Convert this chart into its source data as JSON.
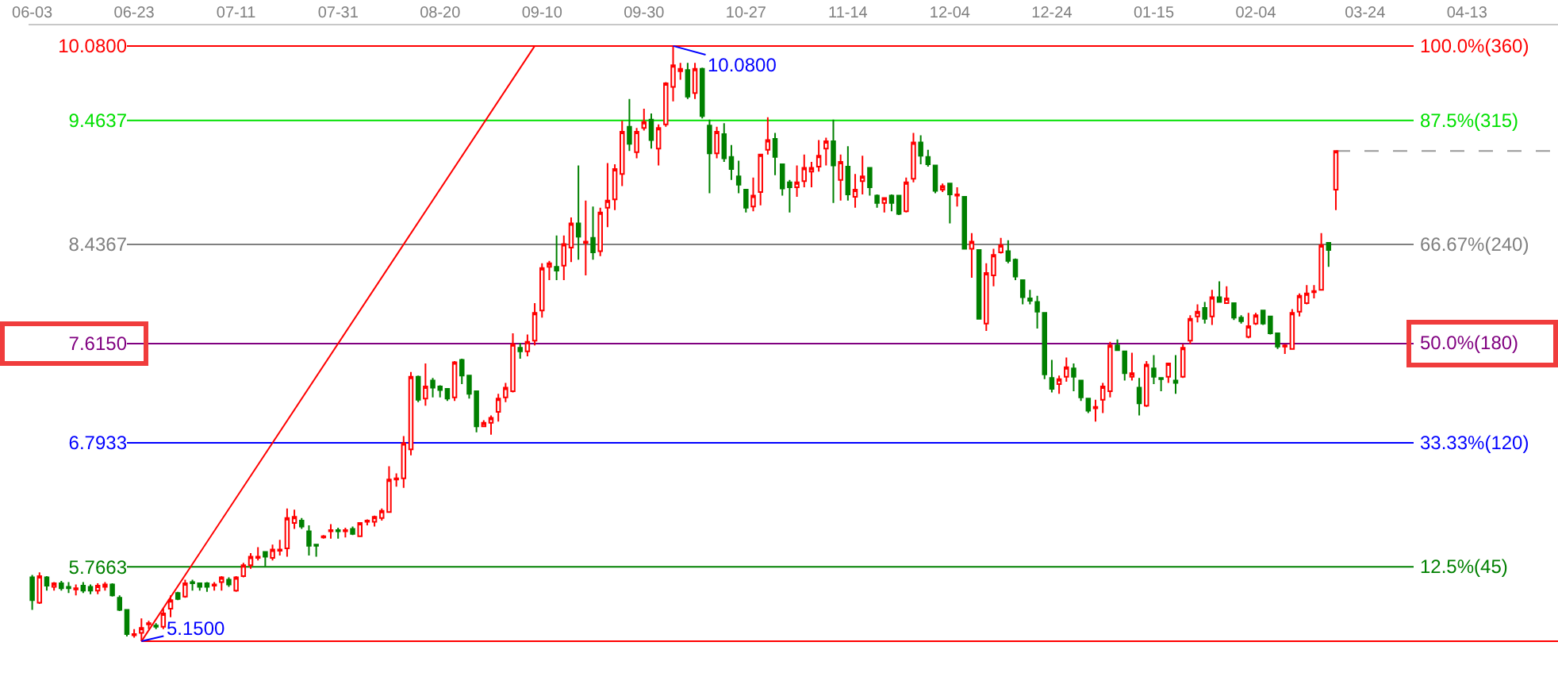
{
  "chart_data": {
    "type": "candlestick",
    "categories": [
      "06-03",
      null,
      null,
      null,
      null,
      null,
      null,
      null,
      null,
      null,
      null,
      null,
      null,
      null,
      "06-23",
      null,
      null,
      null,
      null,
      null,
      null,
      null,
      null,
      null,
      null,
      null,
      null,
      null,
      "07-11",
      null,
      null,
      null,
      null,
      null,
      null,
      null,
      null,
      null,
      null,
      null,
      null,
      null,
      "07-31",
      null,
      null,
      null,
      null,
      null,
      null,
      null,
      null,
      null,
      null,
      null,
      null,
      null,
      "08-20",
      null,
      null,
      null,
      null,
      null,
      null,
      null,
      null,
      null,
      null,
      null,
      null,
      null,
      "09-10",
      null,
      null,
      null,
      null,
      null,
      null,
      null,
      null,
      null,
      null,
      null,
      null,
      null,
      "09-30",
      null,
      null,
      null,
      null,
      null,
      null,
      null,
      null,
      null,
      null,
      null,
      null,
      null,
      "10-27",
      null,
      null,
      null,
      null,
      null,
      null,
      null,
      null,
      null,
      null,
      null,
      null,
      null,
      "11-14",
      null,
      null,
      null,
      null,
      null,
      null,
      null,
      null,
      null,
      null,
      null,
      null,
      null,
      "12-04",
      null,
      null,
      null,
      null,
      null,
      null,
      null,
      null,
      null,
      null,
      null,
      null,
      null,
      "12-24",
      null,
      null,
      null,
      null,
      null,
      null,
      null,
      null,
      null,
      null,
      null,
      null,
      null,
      "01-15",
      null,
      null,
      null,
      null,
      null,
      null,
      null,
      null,
      null,
      null,
      null,
      null,
      null,
      "02-04",
      null,
      null,
      null,
      null,
      null,
      null,
      null,
      null,
      null,
      null,
      null,
      null,
      null,
      null,
      "03-24",
      null,
      null,
      null,
      null,
      null,
      null,
      null,
      null,
      null,
      null,
      null,
      null,
      null,
      "04-13",
      null,
      null,
      null,
      null,
      null,
      null,
      null,
      null,
      null,
      null,
      null,
      null
    ],
    "series": [
      {
        "type": "line",
        "color": "#ff0000",
        "values": [
          null,
          null,
          null,
          null,
          null,
          null,
          null,
          null,
          null,
          null,
          null,
          null,
          null,
          null,
          null,
          5.15,
          null,
          null,
          null,
          null,
          null,
          null,
          null,
          null,
          null,
          null,
          null,
          null,
          null,
          null,
          null,
          null,
          null,
          null,
          null,
          null,
          null,
          null,
          null,
          null,
          null,
          null,
          null,
          null,
          null,
          null,
          null,
          null,
          null,
          null,
          null,
          null,
          null,
          null,
          null,
          null,
          null,
          null,
          null,
          null,
          null,
          null,
          null,
          null,
          null,
          null,
          null,
          null,
          null,
          10.08,
          null,
          null,
          null,
          null,
          null,
          null,
          null,
          null,
          null,
          null,
          null,
          null,
          null,
          null,
          null,
          null,
          null,
          null,
          null,
          null,
          null,
          null,
          null,
          null,
          null,
          null,
          null,
          null,
          null,
          null,
          null,
          null,
          null,
          null,
          null,
          null,
          null,
          null,
          null,
          null,
          null,
          null,
          null,
          null,
          null,
          null,
          null,
          null,
          null,
          null,
          null,
          null,
          null,
          null,
          null,
          null,
          null,
          null,
          null,
          null,
          null,
          null,
          null,
          null,
          null,
          null,
          null,
          null,
          null,
          null,
          null,
          null,
          null,
          null,
          null,
          null,
          null,
          null,
          null,
          null,
          null,
          null,
          null,
          null,
          null,
          null,
          null,
          null,
          null,
          null,
          null,
          null,
          null,
          null,
          null,
          null,
          null,
          null,
          null,
          null,
          null,
          null,
          null,
          null,
          null,
          null,
          null,
          null,
          null,
          null,
          null,
          null,
          null,
          null,
          null,
          null,
          null,
          null,
          null,
          null,
          null,
          null,
          null,
          null,
          null,
          null,
          null,
          null,
          null,
          null,
          null,
          null,
          null,
          null,
          null,
          null,
          null,
          null,
          null,
          null
        ]
      },
      {
        "ohlc": [
          [
            5.68,
            5.7,
            5.41,
            5.49
          ],
          [
            5.47,
            5.72,
            5.46,
            5.69
          ],
          [
            5.68,
            5.69,
            5.57,
            5.61
          ],
          [
            5.6,
            5.64,
            5.57,
            5.63
          ],
          [
            5.63,
            5.65,
            5.57,
            5.59
          ],
          [
            5.6,
            5.64,
            5.55,
            5.59
          ],
          [
            5.58,
            5.62,
            5.53,
            5.59
          ],
          [
            5.61,
            5.64,
            5.55,
            5.57
          ],
          [
            5.6,
            5.62,
            5.54,
            5.57
          ],
          [
            5.57,
            5.63,
            5.54,
            5.61
          ],
          [
            5.6,
            5.64,
            5.57,
            5.62
          ],
          [
            5.62,
            5.63,
            5.52,
            5.53
          ],
          [
            5.51,
            5.53,
            5.4,
            5.41
          ],
          [
            5.41,
            5.41,
            5.19,
            5.21
          ],
          [
            5.2,
            5.25,
            5.18,
            5.21
          ],
          [
            5.22,
            5.34,
            5.15,
            5.26
          ],
          [
            5.29,
            5.32,
            5.25,
            5.3
          ],
          [
            5.28,
            5.3,
            5.25,
            5.27
          ],
          [
            5.27,
            5.42,
            5.25,
            5.38
          ],
          [
            5.42,
            5.53,
            5.35,
            5.49
          ],
          [
            5.55,
            5.56,
            5.49,
            5.5
          ],
          [
            5.52,
            5.66,
            5.51,
            5.63
          ],
          [
            5.64,
            5.66,
            5.57,
            5.63
          ],
          [
            5.63,
            5.63,
            5.57,
            5.6
          ],
          [
            5.63,
            5.64,
            5.56,
            5.6
          ],
          [
            5.61,
            5.64,
            5.57,
            5.62
          ],
          [
            5.64,
            5.69,
            5.57,
            5.68
          ],
          [
            5.66,
            5.68,
            5.6,
            5.62
          ],
          [
            5.57,
            5.69,
            5.56,
            5.68
          ],
          [
            5.69,
            5.8,
            5.68,
            5.78
          ],
          [
            5.78,
            5.88,
            5.75,
            5.85
          ],
          [
            5.84,
            5.93,
            5.82,
            5.85
          ],
          [
            5.89,
            5.89,
            5.77,
            5.85
          ],
          [
            5.84,
            5.95,
            5.82,
            5.91
          ],
          [
            5.9,
            5.99,
            5.86,
            5.91
          ],
          [
            5.92,
            6.25,
            5.85,
            6.17
          ],
          [
            6.13,
            6.24,
            6.08,
            6.18
          ],
          [
            6.15,
            6.17,
            6.08,
            6.1
          ],
          [
            6.06,
            6.11,
            5.86,
            5.94
          ],
          [
            5.95,
            5.95,
            5.85,
            5.94
          ],
          [
            6.01,
            6.03,
            6.0,
            6.02
          ],
          [
            6.06,
            6.12,
            6.0,
            6.07
          ],
          [
            6.07,
            6.09,
            6.0,
            6.06
          ],
          [
            6.06,
            6.09,
            6.01,
            6.07
          ],
          [
            6.08,
            6.1,
            6.03,
            6.04
          ],
          [
            6.02,
            6.13,
            6.02,
            6.13
          ],
          [
            6.14,
            6.16,
            6.11,
            6.15
          ],
          [
            6.14,
            6.19,
            6.1,
            6.18
          ],
          [
            6.17,
            6.25,
            6.15,
            6.23
          ],
          [
            6.22,
            6.6,
            6.22,
            6.49
          ],
          [
            6.49,
            6.54,
            6.43,
            6.5
          ],
          [
            6.5,
            6.85,
            6.42,
            6.79
          ],
          [
            6.74,
            7.38,
            6.69,
            7.34
          ],
          [
            7.34,
            7.35,
            7.13,
            7.15
          ],
          [
            7.16,
            7.45,
            7.1,
            7.26
          ],
          [
            7.31,
            7.33,
            7.17,
            7.25
          ],
          [
            7.26,
            7.27,
            7.17,
            7.23
          ],
          [
            7.24,
            7.24,
            7.14,
            7.16
          ],
          [
            7.17,
            7.47,
            7.14,
            7.46
          ],
          [
            7.48,
            7.49,
            7.28,
            7.35
          ],
          [
            7.35,
            7.35,
            7.16,
            7.2
          ],
          [
            7.22,
            7.22,
            6.88,
            6.93
          ],
          [
            6.93,
            6.98,
            6.93,
            6.96
          ],
          [
            6.96,
            7.02,
            6.86,
            7.0
          ],
          [
            7.05,
            7.2,
            6.97,
            7.16
          ],
          [
            7.17,
            7.29,
            7.13,
            7.25
          ],
          [
            7.22,
            7.7,
            7.21,
            7.61
          ],
          [
            7.58,
            7.62,
            7.49,
            7.55
          ],
          [
            7.55,
            7.69,
            7.51,
            7.63
          ],
          [
            7.64,
            7.95,
            7.6,
            7.87
          ],
          [
            7.89,
            8.28,
            7.83,
            8.24
          ],
          [
            8.25,
            8.3,
            8.14,
            8.28
          ],
          [
            8.25,
            8.51,
            8.14,
            8.22
          ],
          [
            8.26,
            8.51,
            8.14,
            8.44
          ],
          [
            8.41,
            8.66,
            8.29,
            8.61
          ],
          [
            8.61,
            9.09,
            8.31,
            8.5
          ],
          [
            8.45,
            8.8,
            8.18,
            8.46
          ],
          [
            8.49,
            8.75,
            8.31,
            8.37
          ],
          [
            8.38,
            8.74,
            8.34,
            8.7
          ],
          [
            8.74,
            9.11,
            8.58,
            8.8
          ],
          [
            8.81,
            9.1,
            8.72,
            9.06
          ],
          [
            9.02,
            9.46,
            8.92,
            9.37
          ],
          [
            9.41,
            9.64,
            9.21,
            9.27
          ],
          [
            9.2,
            9.4,
            9.15,
            9.37
          ],
          [
            9.4,
            9.56,
            9.38,
            9.45
          ],
          [
            9.47,
            9.52,
            9.23,
            9.3
          ],
          [
            9.23,
            9.43,
            9.09,
            9.4
          ],
          [
            9.43,
            9.78,
            9.41,
            9.77
          ],
          [
            9.74,
            10.08,
            9.62,
            9.92
          ],
          [
            9.87,
            9.94,
            9.8,
            9.89
          ],
          [
            9.88,
            9.94,
            9.64,
            9.66
          ],
          [
            9.69,
            9.94,
            9.64,
            9.89
          ],
          [
            9.89,
            9.9,
            9.48,
            9.5
          ],
          [
            9.42,
            9.47,
            8.86,
            9.19
          ],
          [
            9.19,
            9.41,
            9.15,
            9.37
          ],
          [
            9.35,
            9.44,
            9.12,
            9.15
          ],
          [
            9.16,
            9.26,
            8.97,
            9.06
          ],
          [
            9.0,
            9.13,
            8.86,
            8.93
          ],
          [
            8.89,
            8.89,
            8.7,
            8.74
          ],
          [
            8.75,
            8.99,
            8.71,
            8.84
          ],
          [
            8.87,
            9.18,
            8.76,
            9.18
          ],
          [
            9.22,
            9.49,
            9.18,
            9.3
          ],
          [
            9.31,
            9.36,
            9.01,
            9.16
          ],
          [
            9.1,
            9.1,
            8.84,
            8.9
          ],
          [
            8.95,
            8.97,
            8.7,
            8.91
          ],
          [
            8.91,
            9.09,
            8.83,
            8.95
          ],
          [
            8.96,
            9.18,
            8.91,
            9.07
          ],
          [
            9.04,
            9.12,
            8.91,
            9.07
          ],
          [
            9.08,
            9.3,
            9.04,
            9.17
          ],
          [
            9.23,
            9.32,
            9.09,
            9.29
          ],
          [
            9.29,
            9.47,
            8.78,
            9.09
          ],
          [
            8.97,
            9.18,
            8.8,
            9.12
          ],
          [
            9.08,
            9.25,
            8.8,
            8.85
          ],
          [
            8.83,
            9.02,
            8.74,
            8.89
          ],
          [
            8.96,
            9.17,
            8.85,
            9.0
          ],
          [
            9.07,
            9.07,
            8.84,
            8.91
          ],
          [
            8.84,
            8.85,
            8.74,
            8.78
          ],
          [
            8.78,
            8.82,
            8.7,
            8.82
          ],
          [
            8.84,
            8.85,
            8.71,
            8.78
          ],
          [
            8.84,
            8.84,
            8.68,
            8.69
          ],
          [
            8.71,
            8.99,
            8.7,
            8.95
          ],
          [
            8.98,
            9.36,
            8.95,
            9.28
          ],
          [
            9.28,
            9.34,
            9.1,
            9.17
          ],
          [
            9.16,
            9.22,
            9.08,
            9.1
          ],
          [
            9.09,
            9.09,
            8.86,
            8.88
          ],
          [
            8.89,
            8.94,
            8.87,
            8.92
          ],
          [
            8.94,
            8.94,
            8.61,
            8.85
          ],
          [
            8.84,
            8.91,
            8.75,
            8.85
          ],
          [
            8.83,
            8.83,
            8.4,
            8.4
          ],
          [
            8.4,
            8.53,
            8.16,
            8.46
          ],
          [
            8.39,
            8.39,
            7.82,
            7.82
          ],
          [
            7.78,
            8.28,
            7.72,
            8.2
          ],
          [
            8.18,
            8.4,
            8.09,
            8.35
          ],
          [
            8.37,
            8.49,
            8.36,
            8.43
          ],
          [
            8.38,
            8.47,
            8.28,
            8.3
          ],
          [
            8.31,
            8.32,
            8.14,
            8.17
          ],
          [
            8.14,
            8.14,
            7.94,
            8.0
          ],
          [
            7.99,
            8.06,
            7.94,
            7.97
          ],
          [
            7.96,
            8.01,
            7.74,
            7.88
          ],
          [
            7.87,
            7.87,
            7.32,
            7.36
          ],
          [
            7.33,
            7.48,
            7.21,
            7.24
          ],
          [
            7.28,
            7.35,
            7.2,
            7.32
          ],
          [
            7.34,
            7.5,
            7.3,
            7.42
          ],
          [
            7.41,
            7.45,
            7.22,
            7.34
          ],
          [
            7.31,
            7.31,
            7.14,
            7.17
          ],
          [
            7.16,
            7.16,
            7.04,
            7.06
          ],
          [
            7.08,
            7.15,
            6.97,
            7.09
          ],
          [
            7.15,
            7.29,
            7.04,
            7.26
          ],
          [
            7.22,
            7.63,
            7.17,
            7.6
          ],
          [
            7.6,
            7.65,
            7.56,
            7.56
          ],
          [
            7.55,
            7.55,
            7.31,
            7.37
          ],
          [
            7.34,
            7.54,
            7.31,
            7.37
          ],
          [
            7.25,
            7.33,
            7.02,
            7.12
          ],
          [
            7.1,
            7.47,
            7.09,
            7.44
          ],
          [
            7.41,
            7.52,
            7.28,
            7.34
          ],
          [
            7.33,
            7.33,
            7.22,
            7.32
          ],
          [
            7.34,
            7.45,
            7.29,
            7.45
          ],
          [
            7.31,
            7.52,
            7.2,
            7.29
          ],
          [
            7.34,
            7.61,
            7.33,
            7.58
          ],
          [
            7.64,
            7.85,
            7.61,
            7.82
          ],
          [
            7.84,
            7.94,
            7.79,
            7.88
          ],
          [
            7.91,
            7.96,
            7.78,
            7.82
          ],
          [
            7.84,
            8.06,
            7.77,
            8.0
          ],
          [
            8.0,
            8.13,
            7.96,
            7.96
          ],
          [
            7.95,
            8.09,
            7.95,
            7.99
          ],
          [
            7.95,
            7.95,
            7.81,
            7.83
          ],
          [
            7.83,
            7.85,
            7.78,
            7.8
          ],
          [
            7.67,
            7.87,
            7.66,
            7.76
          ],
          [
            7.78,
            7.87,
            7.77,
            7.85
          ],
          [
            7.89,
            7.89,
            7.77,
            7.78
          ],
          [
            7.84,
            7.84,
            7.69,
            7.7
          ],
          [
            7.7,
            7.7,
            7.57,
            7.59
          ],
          [
            7.59,
            7.61,
            7.53,
            7.6
          ],
          [
            7.57,
            7.9,
            7.57,
            7.87
          ],
          [
            7.88,
            8.03,
            7.84,
            8.01
          ],
          [
            7.95,
            8.1,
            7.94,
            8.03
          ],
          [
            8.04,
            8.1,
            7.99,
            8.05
          ],
          [
            8.06,
            8.53,
            8.06,
            8.43
          ],
          [
            8.45,
            8.45,
            8.25,
            8.39
          ],
          [
            8.89,
            9.21,
            8.72,
            9.21
          ],
          null,
          null,
          null,
          null,
          null,
          null,
          null,
          null,
          null,
          null,
          null,
          null,
          null,
          null,
          null,
          null,
          null,
          null,
          null,
          null,
          null,
          null,
          null,
          null,
          null,
          null,
          null,
          null,
          null,
          null
        ],
        "colors": [
          "#008000",
          "#ff0000",
          "#008000",
          "#ff0000",
          "#008000",
          "#008000",
          "#ff0000",
          "#008000",
          "#008000",
          "#ff0000",
          "#ff0000",
          "#008000",
          "#008000",
          "#008000",
          "#ff0000",
          "#ff0000",
          "#ff0000",
          "#008000",
          "#ff0000",
          "#ff0000",
          "#008000",
          "#ff0000",
          "#008000",
          "#008000",
          "#008000",
          "#ff0000",
          "#ff0000",
          "#008000",
          "#ff0000",
          "#ff0000",
          "#ff0000",
          "#ff0000",
          "#008000",
          "#ff0000",
          "#ff0000",
          "#ff0000",
          "#ff0000",
          "#008000",
          "#008000",
          "#008000",
          "#ff0000",
          "#ff0000",
          "#008000",
          "#ff0000",
          "#008000",
          "#ff0000",
          "#ff0000",
          "#ff0000",
          "#ff0000",
          "#ff0000",
          "#ff0000",
          "#ff0000",
          "#ff0000",
          "#008000",
          "#ff0000",
          "#008000",
          "#008000",
          "#008000",
          "#ff0000",
          "#008000",
          "#008000",
          "#008000",
          "#ff0000",
          "#ff0000",
          "#ff0000",
          "#ff0000",
          "#ff0000",
          "#008000",
          "#ff0000",
          "#ff0000",
          "#ff0000",
          "#ff0000",
          "#008000",
          "#ff0000",
          "#ff0000",
          "#008000",
          "#ff0000",
          "#008000",
          "#ff0000",
          "#ff0000",
          "#ff0000",
          "#ff0000",
          "#008000",
          "#ff0000",
          "#ff0000",
          "#008000",
          "#ff0000",
          "#ff0000",
          "#ff0000",
          "#ff0000",
          "#008000",
          "#ff0000",
          "#008000",
          "#008000",
          "#ff0000",
          "#008000",
          "#008000",
          "#008000",
          "#008000",
          "#ff0000",
          "#ff0000",
          "#ff0000",
          "#008000",
          "#008000",
          "#008000",
          "#ff0000",
          "#ff0000",
          "#ff0000",
          "#ff0000",
          "#ff0000",
          "#008000",
          "#ff0000",
          "#008000",
          "#ff0000",
          "#ff0000",
          "#008000",
          "#008000",
          "#ff0000",
          "#008000",
          "#008000",
          "#ff0000",
          "#ff0000",
          "#008000",
          "#008000",
          "#008000",
          "#ff0000",
          "#008000",
          "#ff0000",
          "#008000",
          "#ff0000",
          "#008000",
          "#ff0000",
          "#ff0000",
          "#ff0000",
          "#008000",
          "#008000",
          "#008000",
          "#008000",
          "#008000",
          "#008000",
          "#008000",
          "#ff0000",
          "#ff0000",
          "#008000",
          "#008000",
          "#008000",
          "#ff0000",
          "#ff0000",
          "#ff0000",
          "#008000",
          "#008000",
          "#ff0000",
          "#008000",
          "#ff0000",
          "#008000",
          "#008000",
          "#ff0000",
          "#008000",
          "#ff0000",
          "#ff0000",
          "#ff0000",
          "#008000",
          "#ff0000",
          "#008000",
          "#ff0000",
          "#008000",
          "#008000",
          "#ff0000",
          "#ff0000",
          "#008000",
          "#008000",
          "#008000",
          "#ff0000",
          "#ff0000",
          "#ff0000",
          "#ff0000",
          "#ff0000",
          "#ff0000",
          "#008000",
          "#ff0000",
          null,
          null,
          null,
          null,
          null,
          null,
          null,
          null,
          null,
          null,
          null,
          null,
          null,
          null,
          null,
          null,
          null,
          null,
          null,
          null,
          null,
          null,
          null,
          null,
          null,
          null,
          null,
          null,
          null,
          null
        ]
      }
    ],
    "ylim": [
      4.73,
      10.25
    ],
    "yticks": [
      {
        "value": 10.08,
        "label": "10.0800"
      },
      9.4637,
      8.4367,
      {
        "value": 7.615,
        "label": "7.6150"
      },
      6.7933,
      5.7663
    ],
    "y2lim": [
      -8.52,
      103.45
    ],
    "ref_lines": [
      {
        "axis": "y2",
        "value": 100,
        "label": "100.0%(360)",
        "color": "#ff0000"
      },
      {
        "axis": "y2",
        "value": 87.5,
        "label": "87.5%(315)",
        "color": "#00e000"
      },
      {
        "axis": "y2",
        "value": 66.67,
        "label": "66.67%(240)",
        "color": "#808080"
      },
      {
        "axis": "y2",
        "value": 50,
        "label": "50.0%(180)",
        "color": "#800080"
      },
      {
        "axis": "y2",
        "value": 33.33,
        "label": "33.33%(120)",
        "color": "#0000ff"
      },
      {
        "axis": "y2",
        "value": 12.5,
        "label": "12.5%(45)",
        "color": "#008000"
      },
      {
        "axis": "y",
        "value": 5.15,
        "color": "#ff0000"
      },
      {
        "axis": "y",
        "value": 9.21,
        "color": "#999999",
        "line_style": "dashed"
      }
    ],
    "annotations": [
      {
        "text": "10.0800",
        "y": 10.08
      },
      {
        "text": "5.1500",
        "y": 5.15
      }
    ]
  }
}
